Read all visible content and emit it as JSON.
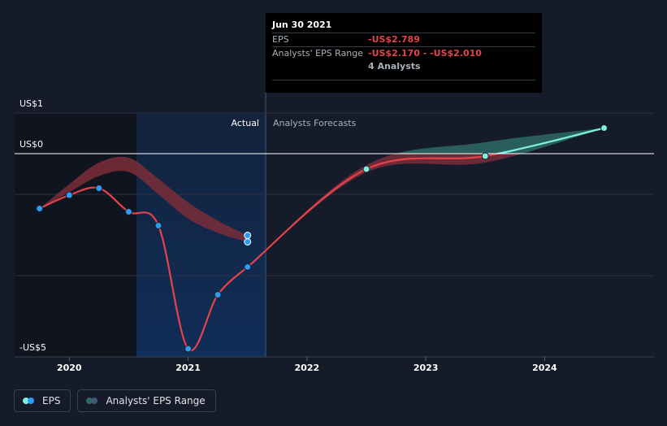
{
  "chart_data": {
    "type": "line",
    "y_axis_labels": [
      {
        "value": 1,
        "label": "US$1"
      },
      {
        "value": 0,
        "label": "US$0"
      },
      {
        "value": -5,
        "label": "-US$5"
      }
    ],
    "ylim": [
      -5,
      1
    ],
    "x_ticks": [
      {
        "value": 2020.0,
        "label": "2020"
      },
      {
        "value": 2021.0,
        "label": "2021"
      },
      {
        "value": 2022.0,
        "label": "2022"
      },
      {
        "value": 2023.0,
        "label": "2023"
      },
      {
        "value": 2024.0,
        "label": "2024"
      }
    ],
    "xlim": [
      2019.54,
      2024.92
    ],
    "actual_label": "Actual",
    "forecast_label": "Analysts Forecasts",
    "actual_end": 2021.5,
    "series": [
      {
        "name": "EPS",
        "actual_points": [
          {
            "x": 2019.75,
            "y": -1.35
          },
          {
            "x": 2020.0,
            "y": -1.02
          },
          {
            "x": 2020.25,
            "y": -0.85
          },
          {
            "x": 2020.5,
            "y": -1.43
          },
          {
            "x": 2020.75,
            "y": -1.77
          },
          {
            "x": 2021.0,
            "y": -4.8
          },
          {
            "x": 2021.25,
            "y": -3.47
          },
          {
            "x": 2021.5,
            "y": -2.789
          }
        ],
        "forecast_points": [
          {
            "x": 2021.5,
            "y": -2.789
          },
          {
            "x": 2022.5,
            "y": -0.38
          },
          {
            "x": 2023.5,
            "y": -0.06
          },
          {
            "x": 2024.5,
            "y": 0.63
          }
        ]
      }
    ],
    "range": {
      "name": "Analysts' EPS Range",
      "actual_high": [
        {
          "x": 2019.75,
          "y": -1.35
        },
        {
          "x": 2020.0,
          "y": -0.75
        },
        {
          "x": 2020.25,
          "y": -0.22
        },
        {
          "x": 2020.5,
          "y": -0.1
        },
        {
          "x": 2020.75,
          "y": -0.62
        },
        {
          "x": 2021.0,
          "y": -1.2
        },
        {
          "x": 2021.25,
          "y": -1.65
        },
        {
          "x": 2021.5,
          "y": -2.01
        }
      ],
      "actual_low": [
        {
          "x": 2019.75,
          "y": -1.35
        },
        {
          "x": 2020.0,
          "y": -0.95
        },
        {
          "x": 2020.25,
          "y": -0.55
        },
        {
          "x": 2020.5,
          "y": -0.45
        },
        {
          "x": 2020.75,
          "y": -1.0
        },
        {
          "x": 2021.0,
          "y": -1.6
        },
        {
          "x": 2021.25,
          "y": -1.95
        },
        {
          "x": 2021.5,
          "y": -2.17
        }
      ],
      "forecast_high": [
        {
          "x": 2021.5,
          "y": -2.789
        },
        {
          "x": 2022.5,
          "y": -0.28
        },
        {
          "x": 2023.5,
          "y": 0.28
        },
        {
          "x": 2024.5,
          "y": 0.63
        }
      ],
      "forecast_low": [
        {
          "x": 2021.5,
          "y": -2.789
        },
        {
          "x": 2022.5,
          "y": -0.46
        },
        {
          "x": 2023.5,
          "y": -0.22
        },
        {
          "x": 2024.5,
          "y": 0.63
        }
      ]
    },
    "colors": {
      "eps_negative": "#e6424b",
      "eps_positive": "#7ff0e0",
      "range_negative": "#7a2d3a",
      "range_positive": "#2e6a65",
      "marker": "#2d9cf0",
      "zero_line": "#ffffff",
      "grid": "#2c3240"
    }
  },
  "tooltip": {
    "date": "Jun 30 2021",
    "eps_label": "EPS",
    "eps_value": "-US$2.789",
    "range_label": "Analysts' EPS Range",
    "range_value": "-US$2.170 - -US$2.010",
    "analysts": "4 Analysts"
  },
  "legend": {
    "eps_label": "EPS",
    "range_label": "Analysts' EPS Range"
  }
}
